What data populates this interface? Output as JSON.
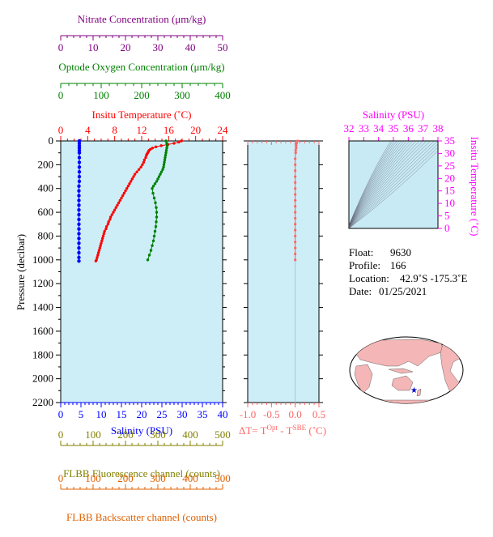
{
  "colors": {
    "nitrate": "#800080",
    "oxygen": "#008000",
    "temperature": "#ff0000",
    "salinity_main": "#0000ff",
    "delta": "#ff6666",
    "salinity_ts": "#ff00ff",
    "fluorescence": "#808000",
    "backscatter": "#e06000",
    "panel_bg": "#cdeef7",
    "ts_bg": "#c8eaf5"
  },
  "axes": {
    "nitrate": {
      "title": "Nitrate Concentration (μm/kg)",
      "range": [
        0,
        50
      ],
      "ticks": [
        "0",
        "10",
        "20",
        "30",
        "40",
        "50"
      ]
    },
    "oxygen": {
      "title": "Optode Oxygen Concentration (μm/kg)",
      "range": [
        0,
        400
      ],
      "ticks": [
        "0",
        "100",
        "200",
        "300",
        "400"
      ]
    },
    "temperature": {
      "title": "Insitu Temperature (˚C)",
      "range": [
        0,
        24
      ],
      "ticks": [
        "0",
        "4",
        "8",
        "12",
        "16",
        "20",
        "24"
      ]
    },
    "salinity": {
      "title": "Salinity (PSU)",
      "range": [
        0,
        40
      ],
      "ticks": [
        "0",
        "5",
        "10",
        "15",
        "20",
        "25",
        "30",
        "35",
        "40"
      ]
    },
    "pressure": {
      "title": "Pressure (decibar)",
      "range": [
        0,
        2200
      ],
      "ticks": [
        "0",
        "200",
        "400",
        "600",
        "800",
        "1000",
        "1200",
        "1400",
        "1600",
        "1800",
        "2000",
        "2200"
      ]
    },
    "delta": {
      "title_prefix": "ΔT= T",
      "sup1": "Opt",
      "mid": " - T",
      "sup2": "SBE",
      "suffix": " (˚C)",
      "range": [
        -1.0,
        0.5
      ],
      "ticks": [
        "-1.0",
        "-0.5",
        "0.0",
        "0.5"
      ]
    },
    "fluorescence": {
      "title": "FLBB Fluorescence channel (counts)",
      "range": [
        0,
        500
      ],
      "ticks": [
        "0",
        "100",
        "200",
        "300",
        "400",
        "500"
      ]
    },
    "backscatter": {
      "title": "FLBB Backscatter channel (counts)",
      "range": [
        0,
        500
      ],
      "ticks": [
        "0",
        "100",
        "200",
        "300",
        "400",
        "500"
      ]
    },
    "ts_salinity": {
      "title": "Salinity (PSU)",
      "range": [
        32,
        38
      ],
      "ticks": [
        "32",
        "33",
        "34",
        "35",
        "36",
        "37",
        "38"
      ]
    },
    "ts_temperature": {
      "title": "Insitu Temperature (˚C)",
      "range": [
        0,
        35
      ],
      "ticks": [
        "0",
        "5",
        "10",
        "15",
        "20",
        "25",
        "30",
        "35"
      ]
    }
  },
  "info": {
    "float_label": "Float:",
    "float_value": "9630",
    "profile_label": "Profile:",
    "profile_value": "166",
    "location_label": "Location:",
    "location_value": "42.9˚S  -175.3˚E",
    "date_label": "Date:",
    "date_value": "01/25/2021"
  },
  "chart_data": {
    "type": "scatter",
    "temperature": {
      "p": [
        0,
        10,
        20,
        30,
        40,
        50,
        60,
        70,
        80,
        90,
        100,
        110,
        120,
        140,
        160,
        180,
        200,
        220,
        240,
        260,
        280,
        300,
        320,
        340,
        360,
        380,
        400,
        420,
        440,
        460,
        480,
        500,
        520,
        540,
        560,
        580,
        600,
        620,
        640,
        660,
        680,
        700,
        720,
        740,
        760,
        780,
        800,
        820,
        840,
        860,
        880,
        900,
        920,
        940,
        960,
        980,
        1000,
        1010
      ],
      "t": [
        17.9,
        17.5,
        16.8,
        15.9,
        14.9,
        14.1,
        13.6,
        13.3,
        13.1,
        13.0,
        12.9,
        12.8,
        12.7,
        12.6,
        12.4,
        12.3,
        12.1,
        11.9,
        11.6,
        11.3,
        11.0,
        10.8,
        10.6,
        10.4,
        10.2,
        10.0,
        9.8,
        9.6,
        9.4,
        9.2,
        9.0,
        8.8,
        8.6,
        8.4,
        8.2,
        8.0,
        7.8,
        7.6,
        7.4,
        7.3,
        7.1,
        7.0,
        6.8,
        6.7,
        6.5,
        6.4,
        6.3,
        6.2,
        6.1,
        6.0,
        5.9,
        5.8,
        5.7,
        5.6,
        5.5,
        5.4,
        5.3,
        5.2
      ]
    },
    "salinity": {
      "p": [
        0,
        20,
        40,
        60,
        80,
        100,
        140,
        180,
        220,
        260,
        300,
        340,
        380,
        420,
        460,
        500,
        540,
        580,
        620,
        660,
        700,
        740,
        780,
        820,
        860,
        900,
        940,
        980,
        1010
      ],
      "s": [
        4.6,
        4.6,
        4.6,
        4.6,
        4.6,
        4.6,
        4.6,
        4.6,
        4.6,
        4.6,
        4.6,
        4.6,
        4.5,
        4.5,
        4.5,
        4.5,
        4.5,
        4.5,
        4.5,
        4.5,
        4.5,
        4.5,
        4.5,
        4.5,
        4.5,
        4.5,
        4.5,
        4.5,
        4.5
      ]
    },
    "oxygen": {
      "p": [
        0,
        20,
        40,
        60,
        80,
        100,
        120,
        140,
        160,
        180,
        200,
        220,
        240,
        260,
        280,
        300,
        320,
        340,
        360,
        380,
        400,
        440,
        480,
        520,
        560,
        600,
        640,
        680,
        720,
        760,
        800,
        840,
        880,
        920,
        960,
        1000
      ],
      "o": [
        260,
        262,
        263,
        262,
        261,
        260,
        259,
        258,
        257,
        256,
        255,
        254,
        252,
        249,
        246,
        243,
        240,
        237,
        233,
        229,
        226,
        228,
        231,
        234,
        236,
        237,
        237,
        236,
        235,
        233,
        231,
        229,
        226,
        223,
        219,
        215
      ]
    },
    "delta_t": {
      "p": [
        0,
        20,
        40,
        60,
        80,
        100,
        150,
        200,
        250,
        300,
        350,
        400,
        450,
        500,
        550,
        600,
        650,
        700,
        750,
        800,
        850,
        900,
        950,
        1000
      ],
      "d": [
        0.05,
        0.03,
        0.02,
        0.02,
        0.01,
        0.01,
        0.0,
        0.0,
        0.0,
        0.0,
        0.0,
        0.0,
        0.0,
        0.0,
        0.0,
        0.0,
        0.0,
        0.0,
        0.0,
        0.0,
        0.0,
        0.0,
        0.0,
        0.0
      ]
    },
    "density_contours": 20
  }
}
